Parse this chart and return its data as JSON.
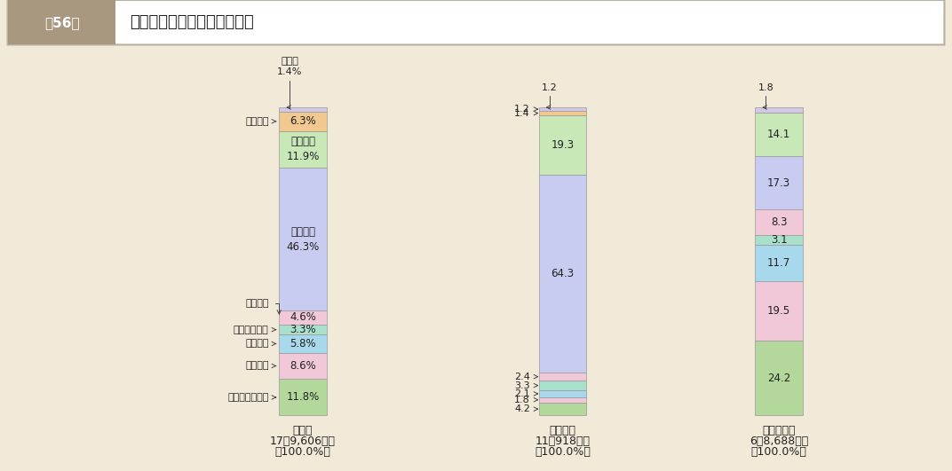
{
  "background_color": "#f2ead8",
  "header_bg": "#a89880",
  "header_text_color": "#ffffff",
  "title_text": "職員給の部門別構成比の状況",
  "title_tag": "第56図",
  "title_bg": "#ffffff",
  "border_color": "#cccccc",
  "bars": [
    {
      "label_lines": [
        "純　計",
        "17兆9,606億円",
        "（100.0%）"
      ],
      "segments": [
        {
          "value": 11.8,
          "color": "#b4d89c",
          "inner_text": "11.8%"
        },
        {
          "value": 8.6,
          "color": "#f0c8d8",
          "inner_text": "8.6%"
        },
        {
          "value": 5.8,
          "color": "#a8d8ec",
          "inner_text": "5.8%"
        },
        {
          "value": 3.3,
          "color": "#a8e0cc",
          "inner_text": "3.3%"
        },
        {
          "value": 4.6,
          "color": "#f0c8d8",
          "inner_text": "4.6%"
        },
        {
          "value": 46.3,
          "color": "#c8ccf0",
          "inner_text": "教育関係\n46.3%"
        },
        {
          "value": 11.9,
          "color": "#c8e8b8",
          "inner_text": "警察関係\n11.9%"
        },
        {
          "value": 6.3,
          "color": "#f0c890",
          "inner_text": "6.3%"
        },
        {
          "value": 1.4,
          "color": "#d4c8e8",
          "inner_text": ""
        }
      ]
    },
    {
      "label_lines": [
        "都道府県",
        "11兆918億円",
        "（100.0%）"
      ],
      "segments": [
        {
          "value": 4.2,
          "color": "#b4d89c",
          "inner_text": ""
        },
        {
          "value": 1.8,
          "color": "#f0c8d8",
          "inner_text": ""
        },
        {
          "value": 2.1,
          "color": "#a8d8ec",
          "inner_text": ""
        },
        {
          "value": 3.3,
          "color": "#a8e0cc",
          "inner_text": ""
        },
        {
          "value": 2.4,
          "color": "#f0c8d8",
          "inner_text": ""
        },
        {
          "value": 64.3,
          "color": "#c8ccf0",
          "inner_text": "64.3"
        },
        {
          "value": 19.3,
          "color": "#c8e8b8",
          "inner_text": "19.3"
        },
        {
          "value": 1.4,
          "color": "#f0c890",
          "inner_text": ""
        },
        {
          "value": 1.2,
          "color": "#d4c8e8",
          "inner_text": ""
        }
      ]
    },
    {
      "label_lines": [
        "市　町　村",
        "6兆8,688億円",
        "（100.0%）"
      ],
      "segments": [
        {
          "value": 24.2,
          "color": "#b4d89c",
          "inner_text": "24.2"
        },
        {
          "value": 19.5,
          "color": "#f0c8d8",
          "inner_text": "19.5"
        },
        {
          "value": 11.7,
          "color": "#a8d8ec",
          "inner_text": "11.7"
        },
        {
          "value": 3.1,
          "color": "#a8e0cc",
          "inner_text": "3.1"
        },
        {
          "value": 8.3,
          "color": "#f0c8d8",
          "inner_text": "8.3"
        },
        {
          "value": 17.3,
          "color": "#c8ccf0",
          "inner_text": "17.3"
        },
        {
          "value": 14.1,
          "color": "#c8e8b8",
          "inner_text": "14.1"
        },
        {
          "value": 0.0,
          "color": "#f0c890",
          "inner_text": ""
        },
        {
          "value": 1.8,
          "color": "#d4c8e8",
          "inner_text": ""
        }
      ]
    }
  ],
  "bar0_left_annotations": [
    {
      "seg_idx": 0,
      "text": "議会・総務関係"
    },
    {
      "seg_idx": 1,
      "text": "民生関係"
    },
    {
      "seg_idx": 2,
      "text": "衛生関係"
    },
    {
      "seg_idx": 3,
      "text": "農林水産関係"
    },
    {
      "seg_idx": 4,
      "text": "土木関係"
    },
    {
      "seg_idx": 7,
      "text": "消防関係"
    }
  ],
  "bar1_left_annotations": [
    {
      "seg_idx": 8,
      "text": "1.2"
    },
    {
      "seg_idx": 7,
      "text": "1.4"
    },
    {
      "seg_idx": 4,
      "text": "2.4"
    },
    {
      "seg_idx": 3,
      "text": "3.3"
    },
    {
      "seg_idx": 2,
      "text": "2.1"
    },
    {
      "seg_idx": 1,
      "text": "1.8"
    },
    {
      "seg_idx": 0,
      "text": "4.2"
    }
  ],
  "bar0_top_text": "その他\n1.4%",
  "bar2_top_text": "1.8"
}
